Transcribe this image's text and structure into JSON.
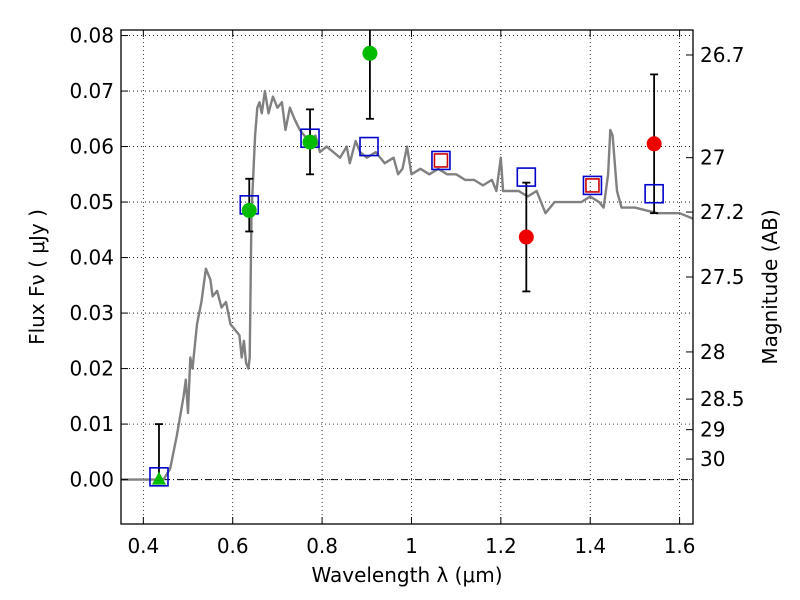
{
  "chart_data": {
    "type": "scatter",
    "xlabel": "Wavelength  λ (μm)",
    "ylabel": "Flux  Fν  ( μJy )",
    "ylabel_right": "Magnitude (AB)",
    "xlim": [
      0.35,
      1.63
    ],
    "ylim": [
      -0.008,
      0.081
    ],
    "x_ticks": [
      0.4,
      0.6,
      0.8,
      1.0,
      1.2,
      1.4,
      1.6
    ],
    "x_tick_labels": [
      "0.4",
      "0.6",
      "0.8",
      "1",
      "1.2",
      "1.4",
      "1.6"
    ],
    "y_ticks": [
      0.0,
      0.01,
      0.02,
      0.03,
      0.04,
      0.05,
      0.06,
      0.07,
      0.08
    ],
    "y_tick_labels": [
      "0.00",
      "0.01",
      "0.02",
      "0.03",
      "0.04",
      "0.05",
      "0.06",
      "0.07",
      "0.08"
    ],
    "right_ticks": [
      {
        "label": "26.7",
        "flux": 0.0765
      },
      {
        "label": "27",
        "flux": 0.058
      },
      {
        "label": "27.2",
        "flux": 0.0482
      },
      {
        "label": "27.5",
        "flux": 0.0365
      },
      {
        "label": "28",
        "flux": 0.023
      },
      {
        "label": "28.5",
        "flux": 0.0145
      },
      {
        "label": "29",
        "flux": 0.009
      },
      {
        "label": "30",
        "flux": 0.0037
      }
    ],
    "grid": true,
    "zero_line": true,
    "colors": {
      "model": "#808080",
      "detection_green": "#00bb00",
      "detection_red": "#ee0000",
      "model_box": "#0000cc",
      "model_box_small": "#cc0000",
      "errorbar": "#000000"
    },
    "series": [
      {
        "kind": "model_sed",
        "points": [
          [
            0.35,
            0.0
          ],
          [
            0.43,
            0.0
          ],
          [
            0.445,
            0.0
          ],
          [
            0.46,
            0.002
          ],
          [
            0.475,
            0.008
          ],
          [
            0.49,
            0.015
          ],
          [
            0.495,
            0.018
          ],
          [
            0.5,
            0.012
          ],
          [
            0.505,
            0.022
          ],
          [
            0.51,
            0.02
          ],
          [
            0.52,
            0.028
          ],
          [
            0.53,
            0.032
          ],
          [
            0.54,
            0.038
          ],
          [
            0.55,
            0.036
          ],
          [
            0.555,
            0.033
          ],
          [
            0.565,
            0.034
          ],
          [
            0.575,
            0.031
          ],
          [
            0.585,
            0.032
          ],
          [
            0.595,
            0.028
          ],
          [
            0.605,
            0.027
          ],
          [
            0.615,
            0.026
          ],
          [
            0.62,
            0.022
          ],
          [
            0.625,
            0.025
          ],
          [
            0.63,
            0.021
          ],
          [
            0.635,
            0.02
          ],
          [
            0.638,
            0.022
          ],
          [
            0.642,
            0.048
          ],
          [
            0.65,
            0.062
          ],
          [
            0.655,
            0.067
          ],
          [
            0.66,
            0.068
          ],
          [
            0.665,
            0.066
          ],
          [
            0.672,
            0.07
          ],
          [
            0.68,
            0.066
          ],
          [
            0.69,
            0.069
          ],
          [
            0.7,
            0.067
          ],
          [
            0.71,
            0.068
          ],
          [
            0.718,
            0.063
          ],
          [
            0.728,
            0.067
          ],
          [
            0.738,
            0.065
          ],
          [
            0.75,
            0.063
          ],
          [
            0.76,
            0.062
          ],
          [
            0.775,
            0.061
          ],
          [
            0.785,
            0.062
          ],
          [
            0.795,
            0.059
          ],
          [
            0.81,
            0.06
          ],
          [
            0.825,
            0.059
          ],
          [
            0.84,
            0.058
          ],
          [
            0.855,
            0.06
          ],
          [
            0.862,
            0.057
          ],
          [
            0.875,
            0.061
          ],
          [
            0.885,
            0.059
          ],
          [
            0.9,
            0.058
          ],
          [
            0.92,
            0.059
          ],
          [
            0.94,
            0.057
          ],
          [
            0.96,
            0.058
          ],
          [
            0.97,
            0.055
          ],
          [
            0.98,
            0.056
          ],
          [
            0.99,
            0.06
          ],
          [
            1.0,
            0.055
          ],
          [
            1.02,
            0.056
          ],
          [
            1.04,
            0.055
          ],
          [
            1.06,
            0.056
          ],
          [
            1.08,
            0.055
          ],
          [
            1.1,
            0.055
          ],
          [
            1.12,
            0.054
          ],
          [
            1.14,
            0.054
          ],
          [
            1.16,
            0.053
          ],
          [
            1.18,
            0.054
          ],
          [
            1.19,
            0.052
          ],
          [
            1.2,
            0.058
          ],
          [
            1.205,
            0.052
          ],
          [
            1.22,
            0.052
          ],
          [
            1.24,
            0.052
          ],
          [
            1.26,
            0.051
          ],
          [
            1.28,
            0.052
          ],
          [
            1.3,
            0.048
          ],
          [
            1.32,
            0.05
          ],
          [
            1.34,
            0.05
          ],
          [
            1.36,
            0.05
          ],
          [
            1.38,
            0.05
          ],
          [
            1.4,
            0.051
          ],
          [
            1.42,
            0.05
          ],
          [
            1.43,
            0.049
          ],
          [
            1.44,
            0.055
          ],
          [
            1.445,
            0.063
          ],
          [
            1.45,
            0.062
          ],
          [
            1.46,
            0.052
          ],
          [
            1.47,
            0.049
          ],
          [
            1.5,
            0.049
          ],
          [
            1.55,
            0.048
          ],
          [
            1.6,
            0.048
          ],
          [
            1.63,
            0.047
          ]
        ]
      },
      {
        "kind": "model_photometry",
        "points": [
          {
            "x": 0.435,
            "y": 0.0005,
            "size": "large"
          },
          {
            "x": 0.637,
            "y": 0.0495,
            "size": "large"
          },
          {
            "x": 0.773,
            "y": 0.0615,
            "size": "large"
          },
          {
            "x": 0.905,
            "y": 0.06,
            "size": "large"
          },
          {
            "x": 1.066,
            "y": 0.0575,
            "size": "small"
          },
          {
            "x": 1.257,
            "y": 0.0545,
            "size": "large"
          },
          {
            "x": 1.405,
            "y": 0.053,
            "size": "small"
          },
          {
            "x": 1.543,
            "y": 0.0515,
            "size": "large"
          }
        ]
      },
      {
        "kind": "observed_optical",
        "points": [
          {
            "x": 0.435,
            "y": 0.0,
            "yerr_low": 0.0,
            "yerr_high": 0.01,
            "marker": "triangle"
          },
          {
            "x": 0.637,
            "y": 0.0485,
            "yerr_low": 0.0038,
            "yerr_high": 0.0057,
            "marker": "circle"
          },
          {
            "x": 0.773,
            "y": 0.0608,
            "yerr_low": 0.0058,
            "yerr_high": 0.0059,
            "marker": "circle"
          },
          {
            "x": 0.907,
            "y": 0.0768,
            "yerr_low": 0.0118,
            "yerr_high": 0.0052,
            "marker": "circle"
          }
        ]
      },
      {
        "kind": "observed_nir",
        "points": [
          {
            "x": 1.257,
            "y": 0.0437,
            "yerr_low": 0.0098,
            "yerr_high": 0.0098,
            "marker": "circle"
          },
          {
            "x": 1.543,
            "y": 0.0605,
            "yerr_low": 0.0125,
            "yerr_high": 0.0125,
            "marker": "circle"
          }
        ]
      }
    ]
  }
}
